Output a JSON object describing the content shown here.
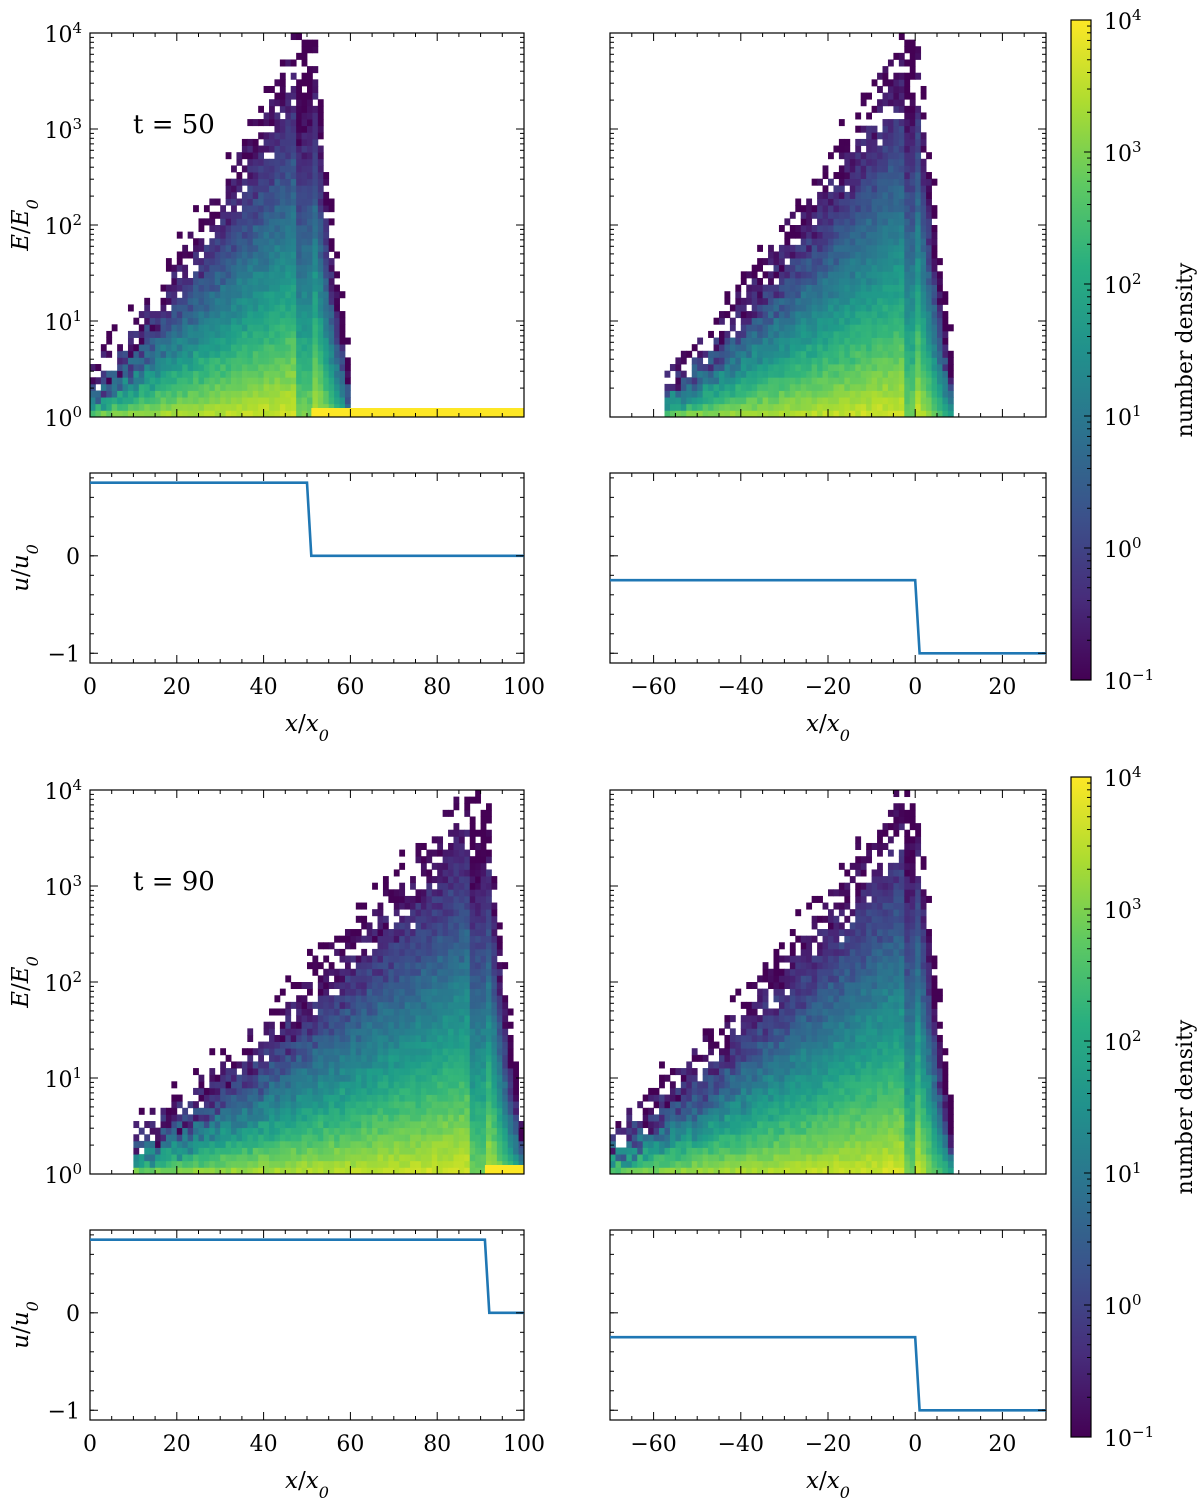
{
  "chart_data": [
    {
      "type": "heatmap",
      "time_annotation": "t = 50",
      "ylabel": "E/E_0",
      "panels": {
        "left_heatmap": {
          "xlim": [
            0,
            100
          ],
          "ylim_log10": [
            0,
            4
          ],
          "shock_x": 51,
          "left_edge": 0,
          "yellow_floor_from": 51
        },
        "right_heatmap": {
          "xlim": [
            -70,
            30
          ],
          "ylim_log10": [
            0,
            4
          ],
          "shock_x": 0,
          "left_edge": -57
        },
        "left_u": {
          "xlim": [
            0,
            100
          ],
          "ylim": [
            -1.1,
            0.85
          ],
          "yticks": [
            0,
            -1
          ],
          "xticks": [
            0,
            20,
            40,
            60,
            80,
            100
          ],
          "xlabel": "x/x_0",
          "ylabel": "u/u_0",
          "profile": [
            [
              0,
              0.75
            ],
            [
              50,
              0.75
            ],
            [
              51,
              0.0
            ],
            [
              100,
              0.0
            ]
          ]
        },
        "right_u": {
          "xlim": [
            -70,
            30
          ],
          "ylim": [
            -1.1,
            0.85
          ],
          "yticks": [
            0,
            -1
          ],
          "xticks": [
            -60,
            -40,
            -20,
            0,
            20
          ],
          "xlabel": "x/x_0",
          "profile": [
            [
              -70,
              -0.25
            ],
            [
              0,
              -0.25
            ],
            [
              1,
              -1.0
            ],
            [
              30,
              -1.0
            ]
          ]
        }
      },
      "colorbar": {
        "label": "number density",
        "scale": "log",
        "range": [
          0.1,
          10000
        ],
        "ticks": [
          "10^-1",
          "10^0",
          "10^1",
          "10^2",
          "10^3",
          "10^4"
        ]
      }
    },
    {
      "type": "heatmap",
      "time_annotation": "t = 90",
      "ylabel": "E/E_0",
      "panels": {
        "left_heatmap": {
          "xlim": [
            0,
            100
          ],
          "ylim_log10": [
            0,
            4
          ],
          "shock_x": 91,
          "left_edge": 10,
          "yellow_floor_from": 91
        },
        "right_heatmap": {
          "xlim": [
            -70,
            30
          ],
          "ylim_log10": [
            0,
            4
          ],
          "shock_x": 0,
          "left_edge": -70
        },
        "left_u": {
          "xlim": [
            0,
            100
          ],
          "ylim": [
            -1.1,
            0.85
          ],
          "yticks": [
            0,
            -1
          ],
          "xticks": [
            0,
            20,
            40,
            60,
            80,
            100
          ],
          "xlabel": "x/x_0",
          "ylabel": "u/u_0",
          "profile": [
            [
              0,
              0.75
            ],
            [
              91,
              0.75
            ],
            [
              92,
              0.0
            ],
            [
              100,
              0.0
            ]
          ]
        },
        "right_u": {
          "xlim": [
            -70,
            30
          ],
          "ylim": [
            -1.1,
            0.85
          ],
          "yticks": [
            0,
            -1
          ],
          "xticks": [
            -60,
            -40,
            -20,
            0,
            20
          ],
          "xlabel": "x/x_0",
          "profile": [
            [
              -70,
              -0.25
            ],
            [
              0,
              -0.25
            ],
            [
              1,
              -1.0
            ],
            [
              30,
              -1.0
            ]
          ]
        }
      },
      "colorbar": {
        "label": "number density",
        "scale": "log",
        "range": [
          0.1,
          10000
        ],
        "ticks": [
          "10^-1",
          "10^0",
          "10^1",
          "10^2",
          "10^3",
          "10^4"
        ]
      }
    }
  ]
}
